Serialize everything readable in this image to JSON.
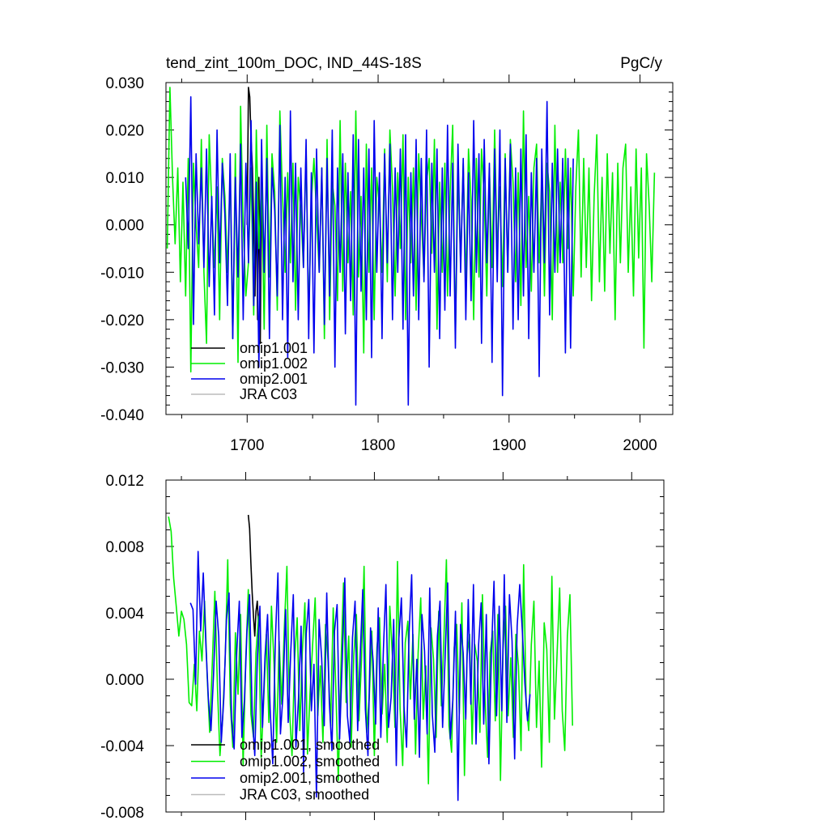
{
  "chart_data": [
    {
      "type": "line",
      "title": "tend_zint_100m_DOC, IND_44S-18S",
      "units": "PgC/y",
      "xlabel": "",
      "ylabel": "",
      "xlim": [
        1638,
        2025
      ],
      "ylim": [
        -0.04,
        0.03
      ],
      "xticks": [
        1700,
        1800,
        1900,
        2000
      ],
      "xtick_labels": [
        "1700",
        "1800",
        "1900",
        "2000"
      ],
      "yticks": [
        -0.04,
        -0.03,
        -0.02,
        -0.01,
        0.0,
        0.01,
        0.02,
        0.03
      ],
      "ytick_labels": [
        "-0.040",
        "-0.030",
        "-0.020",
        "-0.010",
        "0.000",
        "0.010",
        "0.020",
        "0.030"
      ],
      "grid": false,
      "legend_position": "bottom-left",
      "series": [
        {
          "name": "omip1.001",
          "color": "#000000",
          "x_start": 1700,
          "x_step": 1,
          "values": [
            0.0,
            0.029,
            0.027,
            0.018,
            0.012,
            0.0,
            -0.015,
            0.006,
            -0.02,
            0.01,
            -0.025,
            0.008
          ]
        },
        {
          "name": "omip1.002",
          "color": "#00ee00",
          "x_start": 1639,
          "x_step": 2,
          "values": [
            -0.005,
            0.029,
            0.01,
            -0.004,
            0.012,
            -0.012,
            0.009,
            -0.015,
            0.014,
            -0.031,
            0.013,
            0.0,
            -0.009,
            0.018,
            -0.01,
            -0.025,
            0.019,
            0.004,
            -0.009,
            0.008,
            -0.02,
            0.014,
            0.006,
            -0.01,
            0.011,
            -0.024,
            0.015,
            -0.029,
            0.025,
            0.0,
            -0.015,
            -0.008,
            0.012,
            -0.019,
            0.02,
            -0.005,
            0.009,
            -0.022,
            0.021,
            -0.011,
            0.015,
            0.007,
            -0.018,
            0.024,
            0.006,
            -0.01,
            0.011,
            -0.008,
            0.013,
            -0.018,
            0.01,
            0.003,
            -0.009,
            0.016,
            -0.02,
            0.005,
            0.014,
            0.002,
            -0.01,
            0.012,
            -0.024,
            0.018,
            -0.02,
            0.009,
            0.004,
            -0.016,
            0.022,
            -0.014,
            0.013,
            -0.008,
            0.007,
            -0.019,
            0.024,
            -0.011,
            0.006,
            -0.027,
            0.017,
            -0.01,
            0.012,
            -0.02,
            0.01,
            0.004,
            -0.01,
            0.016,
            -0.012,
            0.02,
            0.008,
            -0.015,
            0.011,
            -0.005,
            0.019,
            -0.02,
            0.01,
            -0.008,
            0.012,
            -0.018,
            0.015,
            0.002,
            -0.011,
            0.009,
            0.014,
            -0.006,
            0.018,
            -0.022,
            0.009,
            -0.01,
            0.013,
            -0.015,
            0.007,
            0.021,
            -0.024,
            0.011,
            -0.008,
            0.013,
            -0.013,
            0.016,
            0.005,
            -0.02,
            0.014,
            -0.011,
            0.016,
            0.006,
            -0.015,
            0.012,
            -0.009,
            0.02,
            -0.006,
            0.008,
            -0.013,
            0.015,
            -0.01,
            0.018,
            0.009,
            -0.012,
            0.011,
            -0.017,
            0.024,
            -0.009,
            0.006,
            -0.014,
            0.012,
            0.017,
            -0.008,
            0.01,
            -0.015,
            0.013,
            0.007,
            -0.02,
            0.021,
            -0.01,
            0.009,
            -0.008,
            0.016,
            -0.005,
            0.012,
            -0.015,
            0.008,
            0.02,
            -0.011,
            0.014,
            -0.009,
            0.012,
            -0.016,
            0.006,
            0.019,
            -0.012,
            0.01,
            -0.014,
            0.015,
            -0.006,
            0.011,
            -0.02,
            0.013,
            -0.008,
            0.012,
            0.017,
            -0.01,
            0.008,
            -0.015,
            0.016,
            -0.007,
            0.012,
            -0.026,
            0.015,
            0.004,
            -0.012,
            0.011
          ]
        },
        {
          "name": "omip2.001",
          "color": "#0000ee",
          "x_start": 1653,
          "x_step": 2,
          "values": [
            0.01,
            -0.005,
            0.027,
            -0.021,
            0.015,
            -0.004,
            0.012,
            -0.009,
            0.016,
            -0.013,
            0.006,
            -0.019,
            0.02,
            -0.008,
            0.013,
            0.002,
            -0.017,
            0.015,
            -0.024,
            0.01,
            -0.011,
            0.017,
            -0.02,
            0.013,
            -0.008,
            0.022,
            -0.017,
            0.009,
            -0.03,
            0.018,
            -0.01,
            0.014,
            -0.024,
            0.012,
            0.003,
            -0.015,
            0.021,
            -0.02,
            0.01,
            -0.028,
            0.024,
            -0.012,
            0.013,
            -0.02,
            0.012,
            -0.009,
            0.018,
            -0.024,
            0.011,
            -0.027,
            0.016,
            -0.01,
            0.012,
            -0.021,
            0.014,
            -0.015,
            0.02,
            -0.03,
            0.012,
            -0.01,
            0.015,
            -0.023,
            0.011,
            -0.016,
            0.019,
            -0.038,
            0.018,
            -0.014,
            0.012,
            -0.02,
            0.016,
            -0.028,
            0.022,
            -0.01,
            0.011,
            -0.024,
            0.015,
            -0.008,
            0.017,
            -0.02,
            0.012,
            -0.01,
            0.016,
            -0.022,
            0.019,
            -0.038,
            0.011,
            -0.015,
            0.018,
            -0.02,
            0.014,
            -0.012,
            0.02,
            -0.03,
            0.013,
            -0.01,
            0.016,
            -0.024,
            0.012,
            -0.018,
            0.021,
            -0.015,
            0.013,
            -0.026,
            0.017,
            -0.01,
            0.014,
            -0.02,
            0.011,
            -0.016,
            0.022,
            -0.01,
            0.015,
            -0.025,
            0.018,
            -0.008,
            0.013,
            -0.029,
            0.016,
            -0.012,
            0.02,
            -0.036,
            0.014,
            -0.01,
            0.017,
            -0.022,
            0.012,
            -0.02,
            0.016,
            -0.015,
            0.019,
            -0.024,
            0.011,
            -0.01,
            0.014,
            -0.032,
            0.016,
            -0.008,
            0.026,
            -0.019,
            0.013,
            -0.01,
            0.016,
            -0.008,
            0.014,
            -0.027,
            0.014,
            -0.026,
            0.014
          ]
        }
      ]
    },
    {
      "type": "line",
      "title": "",
      "xlabel": "",
      "ylabel": "",
      "xlim": [
        1638,
        2025
      ],
      "ylim": [
        -0.008,
        0.012
      ],
      "xticks": [
        1700,
        1800,
        1900,
        2000
      ],
      "xtick_labels": [],
      "yticks": [
        -0.008,
        -0.004,
        0.0,
        0.004,
        0.008,
        0.012
      ],
      "ytick_labels": [
        "-0.008",
        "-0.004",
        "0.000",
        "0.004",
        "0.008",
        "0.012"
      ],
      "grid": false,
      "legend_position": "bottom-left",
      "series": [
        {
          "name": "omip1.001, smoothed",
          "color": "#000000",
          "x_start": 1702,
          "x_step": 1,
          "values": [
            0.0099,
            0.0091,
            0.007,
            0.0052,
            0.0038,
            0.0026,
            0.0041,
            0.0047,
            0.0033
          ]
        },
        {
          "name": "omip1.002, smoothed",
          "color": "#00ee00",
          "x_start": 1640,
          "x_step": 2,
          "values": [
            0.0098,
            0.0089,
            0.0061,
            0.0044,
            0.0026,
            0.0041,
            0.0036,
            0.0021,
            -0.0014,
            -0.0016,
            0.0009,
            -0.0019,
            0.0029,
            0.0011,
            0.0047,
            0.0002,
            -0.0032,
            0.0009,
            0.0053,
            -0.0005,
            -0.0046,
            -0.0024,
            0.0011,
            0.0072,
            -0.0015,
            -0.0041,
            0.0028,
            -0.0009,
            0.0039,
            -0.0052,
            0.0011,
            0.0054,
            -0.0021,
            -0.0035,
            0.0016,
            0.0038,
            -0.0047,
            -0.0012,
            0.0027,
            -0.0026,
            0.0044,
            0.0009,
            -0.0038,
            0.0023,
            -0.0015,
            0.0031,
            0.0068,
            -0.0019,
            -0.0046,
            0.0012,
            0.0037,
            -0.0031,
            0.0016,
            0.0046,
            -0.0045,
            -0.0008,
            0.0021,
            0.0049,
            -0.0022,
            0.0008,
            -0.0038,
            0.0033,
            0.0011,
            -0.0028,
            0.0043,
            -0.0005,
            -0.0061,
            0.0007,
            0.0058,
            -0.0014,
            0.0026,
            -0.0041,
            0.0014,
            0.0039,
            -0.0025,
            0.0012,
            0.0068,
            -0.0032,
            -0.0011,
            0.0029,
            -0.0046,
            0.0019,
            0.0037,
            -0.0021,
            0.0009,
            -0.0038,
            0.0044,
            0.0014,
            -0.0029,
            0.0071,
            -0.0018,
            -0.0052,
            0.0022,
            0.0035,
            -0.0012,
            0.0027,
            -0.0045,
            0.0016,
            0.0049,
            -0.0024,
            0.0008,
            -0.0063,
            0.0031,
            0.0012,
            -0.0035,
            0.0041,
            -0.0016,
            0.0024,
            0.0072,
            -0.0028,
            -0.0044,
            0.0019,
            0.0033,
            -0.0021,
            0.0046,
            -0.0058,
            0.0014,
            0.0027,
            -0.0039,
            0.0021,
            0.0011,
            -0.0032,
            0.0051,
            -0.0011,
            -0.0047,
            0.0016,
            0.0029,
            -0.0025,
            0.0039,
            -0.0061,
            0.0018,
            0.0044,
            -0.0022,
            0.0013,
            -0.0035,
            0.0027,
            0.0008,
            -0.0043,
            0.0069,
            -0.0016,
            -0.0031,
            0.0021,
            0.0047,
            -0.0029,
            0.0011,
            -0.0053,
            0.0034,
            0.0018,
            -0.0038,
            0.0062,
            -0.0024,
            0.0015,
            0.0055,
            -0.0019,
            -0.0043,
            0.0026,
            0.0051,
            -0.0028
          ]
        },
        {
          "name": "omip2.001, smoothed",
          "color": "#0000ee",
          "x_start": 1657,
          "x_step": 2,
          "values": [
            0.0046,
            0.0042,
            -0.0003,
            0.0077,
            0.0029,
            0.0064,
            0.0021,
            -0.0012,
            -0.0031,
            0.0003,
            0.0047,
            0.0026,
            -0.0038,
            -0.0011,
            0.0036,
            0.0052,
            -0.0024,
            -0.0042,
            0.0016,
            0.0047,
            -0.0035,
            -0.0013,
            0.0029,
            0.0051,
            -0.0021,
            -0.0046,
            0.0011,
            0.0044,
            -0.0029,
            0.0014,
            0.0039,
            -0.0018,
            -0.0051,
            0.0023,
            0.0064,
            -0.0033,
            -0.0009,
            0.0042,
            -0.0026,
            0.0016,
            0.0051,
            -0.0041,
            -0.0012,
            0.0032,
            -0.0056,
            0.0027,
            0.0048,
            -0.0019,
            0.0009,
            -0.0071,
            0.0036,
            0.0013,
            -0.0028,
            0.0052,
            -0.0014,
            -0.0043,
            0.0029,
            0.0045,
            -0.0036,
            0.0011,
            0.0061,
            -0.0022,
            -0.0038,
            0.0025,
            0.0047,
            -0.0031,
            0.0015,
            0.0054,
            -0.0018,
            -0.0046,
            0.0031,
            0.0011,
            -0.0027,
            0.0043,
            -0.0035,
            0.0018,
            0.0057,
            -0.0029,
            -0.0011,
            0.0036,
            -0.0052,
            0.0024,
            0.0049,
            -0.0016,
            -0.0041,
            0.0028,
            0.0063,
            -0.0024,
            0.0012,
            -0.0047,
            0.0039,
            0.0017,
            -0.0033,
            0.0055,
            -0.0021,
            -0.0044,
            0.0026,
            0.0047,
            -0.0029,
            0.0013,
            0.0058,
            -0.0036,
            -0.0012,
            0.0041,
            -0.0073,
            0.0033,
            0.0016,
            -0.0024,
            0.0048,
            -0.0015,
            0.0057,
            -0.0039,
            0.0021,
            0.0046,
            -0.0027,
            0.0039,
            -0.0051,
            0.0017,
            0.0059,
            -0.0022,
            0.0044,
            -0.0019,
            0.0063,
            -0.0026,
            0.0051,
            0.0023,
            -0.0048,
            0.0032,
            0.0057,
            0.0029,
            -0.0003,
            -0.0025,
            -0.0009
          ]
        }
      ]
    }
  ]
}
